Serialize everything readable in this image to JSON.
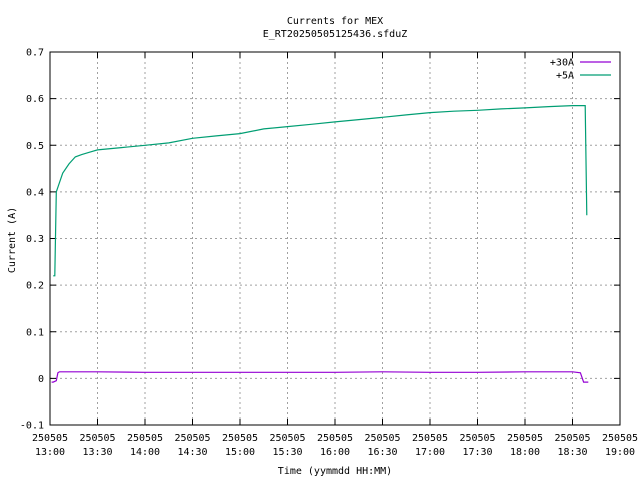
{
  "chart_data": {
    "type": "line",
    "title": "Currents for MEX",
    "subtitle": "E_RT20250505125436.sfduZ",
    "xlabel": "Time (yymmdd HH:MM)",
    "ylabel": "Current (A)",
    "ylim": [
      -0.1,
      0.7
    ],
    "xlim": [
      "13:00",
      "19:00"
    ],
    "grid": true,
    "legend_position": "top-right",
    "y_ticks": [
      "-0.1",
      "0",
      "0.1",
      "0.2",
      "0.3",
      "0.4",
      "0.5",
      "0.6",
      "0.7"
    ],
    "x_ticks": [
      {
        "date": "250505",
        "time": "13:00"
      },
      {
        "date": "250505",
        "time": "13:30"
      },
      {
        "date": "250505",
        "time": "14:00"
      },
      {
        "date": "250505",
        "time": "14:30"
      },
      {
        "date": "250505",
        "time": "15:00"
      },
      {
        "date": "250505",
        "time": "15:30"
      },
      {
        "date": "250505",
        "time": "16:00"
      },
      {
        "date": "250505",
        "time": "16:30"
      },
      {
        "date": "250505",
        "time": "17:00"
      },
      {
        "date": "250505",
        "time": "17:30"
      },
      {
        "date": "250505",
        "time": "18:00"
      },
      {
        "date": "250505",
        "time": "18:30"
      },
      {
        "date": "250505",
        "time": "19:00"
      }
    ],
    "series": [
      {
        "name": "+30A",
        "color": "#9400d3",
        "x": [
          "13:01",
          "13:02",
          "13:04",
          "13:05",
          "13:06",
          "13:30",
          "14:00",
          "14:30",
          "15:00",
          "15:30",
          "16:00",
          "16:30",
          "17:00",
          "17:30",
          "18:00",
          "18:30",
          "18:35",
          "18:37",
          "18:40"
        ],
        "y": [
          -0.008,
          -0.008,
          -0.005,
          0.012,
          0.014,
          0.014,
          0.013,
          0.013,
          0.013,
          0.013,
          0.013,
          0.014,
          0.013,
          0.013,
          0.014,
          0.014,
          0.012,
          -0.008,
          -0.008
        ]
      },
      {
        "name": "+5A",
        "color": "#009e73",
        "x": [
          "13:02",
          "13:03",
          "13:04",
          "13:05",
          "13:08",
          "13:12",
          "13:16",
          "13:20",
          "13:25",
          "13:30",
          "13:45",
          "14:00",
          "14:15",
          "14:30",
          "14:45",
          "15:00",
          "15:15",
          "15:30",
          "15:45",
          "16:00",
          "16:15",
          "16:30",
          "16:45",
          "17:00",
          "17:15",
          "17:30",
          "17:45",
          "18:00",
          "18:15",
          "18:30",
          "18:35",
          "18:38",
          "18:39"
        ],
        "y": [
          0.22,
          0.22,
          0.4,
          0.41,
          0.44,
          0.46,
          0.475,
          0.48,
          0.485,
          0.49,
          0.495,
          0.5,
          0.505,
          0.515,
          0.52,
          0.525,
          0.535,
          0.54,
          0.545,
          0.55,
          0.555,
          0.56,
          0.565,
          0.57,
          0.573,
          0.575,
          0.578,
          0.58,
          0.583,
          0.585,
          0.585,
          0.585,
          0.35
        ]
      }
    ]
  }
}
